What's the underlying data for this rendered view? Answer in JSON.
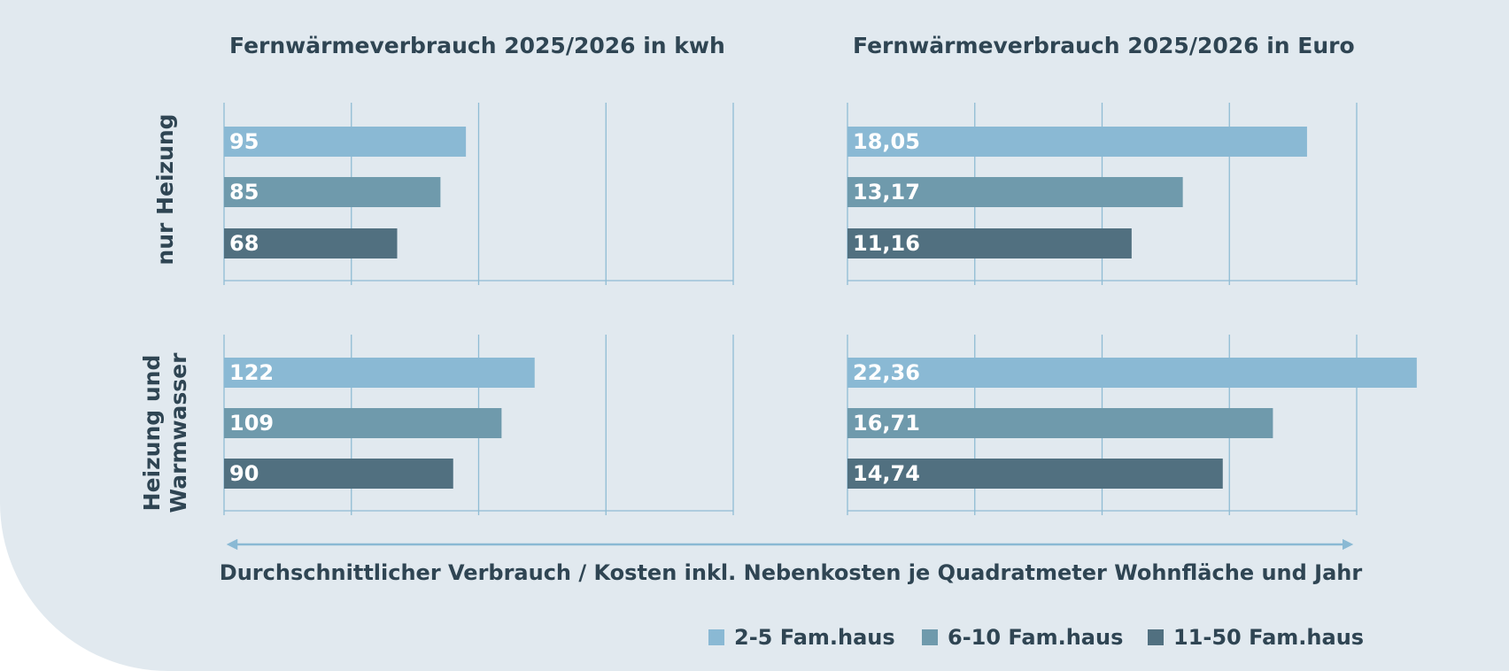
{
  "chart_data": [
    {
      "type": "bar",
      "title": "Fernwärmeverbrauch 2025/2026 in kwh",
      "xlim": [
        0,
        200
      ],
      "xticks": [
        0,
        50,
        100,
        150,
        200
      ],
      "grid": true,
      "series": [
        {
          "name": "2-5 Fam.haus",
          "color": "#8ab9d4",
          "values": [
            95,
            122
          ]
        },
        {
          "name": "6-10 Fam.haus",
          "color": "#6f9aac",
          "values": [
            85,
            109
          ]
        },
        {
          "name": "11-50 Fam.haus",
          "color": "#517080",
          "values": [
            68,
            90
          ]
        }
      ]
    },
    {
      "type": "bar",
      "title": "Fernwärmeverbrauch 2025/2026 in Euro",
      "xlim": [
        0,
        20
      ],
      "xticks": [
        0,
        5,
        10,
        15,
        20
      ],
      "grid": true,
      "series": [
        {
          "color": "#8ab9d4",
          "values": [
            18.05,
            22.36
          ],
          "value_labels": [
            "18,05",
            "22,36"
          ]
        },
        {
          "color": "#6f9aac",
          "values": [
            13.17,
            16.71
          ],
          "value_labels": [
            "13,17",
            "16,71"
          ]
        },
        {
          "color": "#517080",
          "values": [
            11.16,
            14.74
          ],
          "value_labels": [
            "11,16",
            "14,74"
          ]
        }
      ]
    }
  ],
  "rows": [
    "nur Heizung",
    "Heizung und Warmwasser"
  ],
  "xlabel": "Durchschnittlicher Verbrauch / Kosten inkl. Nebenkosten je Quadratmeter Wohnfläche und Jahr"
}
